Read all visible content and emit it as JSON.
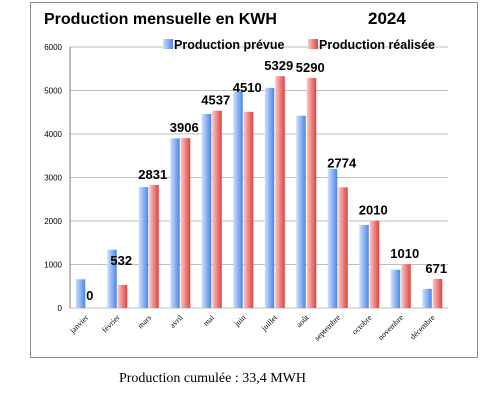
{
  "chart_data": {
    "type": "bar",
    "title": "Production mensuelle en KWH",
    "year": "2024",
    "categories": [
      "janvier",
      "février",
      "mars",
      "avril",
      "mai",
      "juin",
      "juillet",
      "août",
      "septembre",
      "octobre",
      "novembre",
      "décembre"
    ],
    "series": [
      {
        "name": "Production prévue",
        "values": [
          660,
          1340,
          2780,
          3900,
          4460,
          4980,
          5060,
          4420,
          3200,
          1910,
          880,
          440
        ],
        "color_light": "#cfe0fb",
        "color_dark": "#4a86e8"
      },
      {
        "name": "Production réalisée",
        "values": [
          0,
          532,
          2831,
          3906,
          4537,
          4510,
          5329,
          5290,
          2774,
          2010,
          1010,
          671
        ],
        "color_light": "#f9c8c8",
        "color_dark": "#e0423e"
      }
    ],
    "data_labels": [
      "0",
      "532",
      "2831",
      "3906",
      "4537",
      "4510",
      "5329",
      "5290",
      "2774",
      "2010",
      "1010",
      "671"
    ],
    "yticks": [
      "0",
      "1000",
      "2000",
      "3000",
      "4000",
      "5000",
      "6000"
    ],
    "ylim": [
      0,
      6000
    ],
    "grid": true,
    "legend_position": "top-right"
  },
  "footer": {
    "cumulative_text": "Production cumulée : 33,4 MWH"
  }
}
